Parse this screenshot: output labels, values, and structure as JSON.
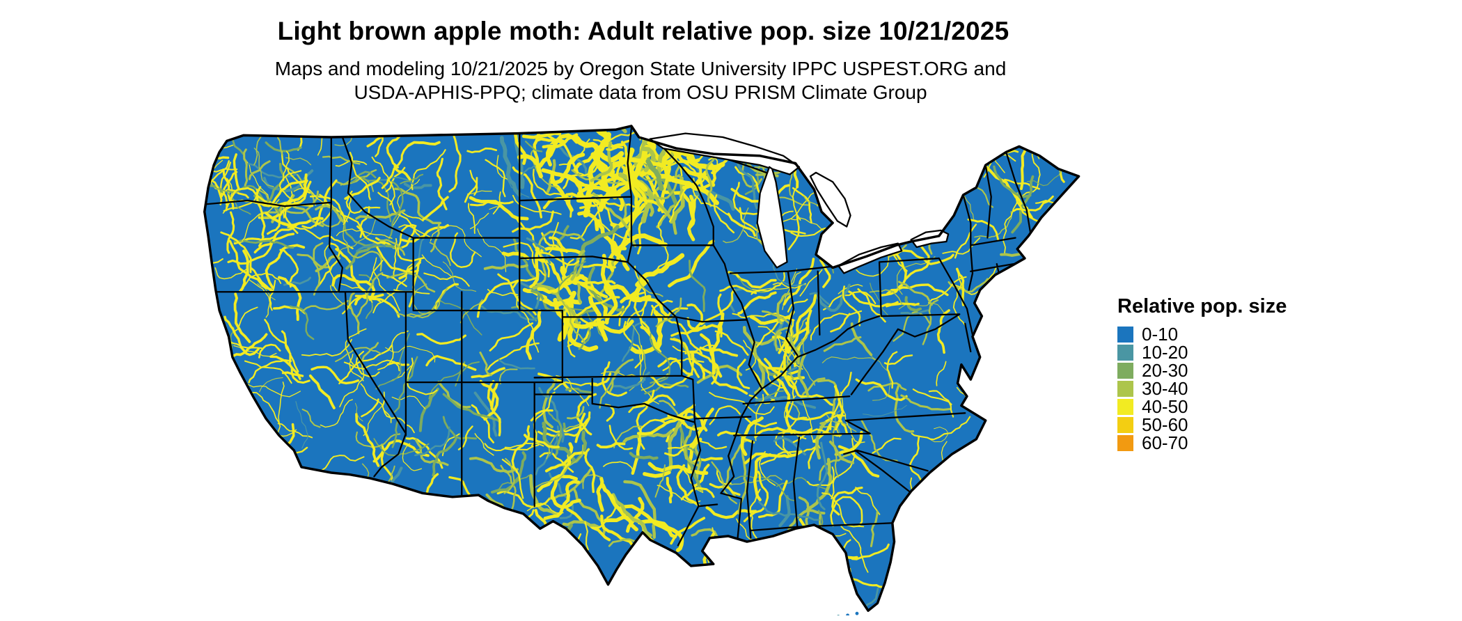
{
  "header": {
    "title": "Light brown apple moth: Adult relative pop. size 10/21/2025",
    "subtitle_line1": "Maps and modeling 10/21/2025 by Oregon State University IPPC USPEST.ORG and",
    "subtitle_line2": "USDA-APHIS-PPQ; climate data from OSU PRISM Climate Group"
  },
  "map": {
    "description": "Continental United States raster map of modeled adult relative population size; predominantly lowest class with dendritic patches of higher classes along terrain and the northern plains",
    "base_color": "#1B75BE",
    "border_color": "#000000",
    "water_color": "#FFFFFF"
  },
  "legend": {
    "title": "Relative pop. size",
    "entries": [
      {
        "label": "0-10",
        "color": "#1B75BE"
      },
      {
        "label": "10-20",
        "color": "#4A96A3"
      },
      {
        "label": "20-30",
        "color": "#7EAC5F"
      },
      {
        "label": "30-40",
        "color": "#ADC54B"
      },
      {
        "label": "40-50",
        "color": "#F2EB22"
      },
      {
        "label": "50-60",
        "color": "#F3CE12"
      },
      {
        "label": "60-70",
        "color": "#F29A11"
      }
    ]
  }
}
